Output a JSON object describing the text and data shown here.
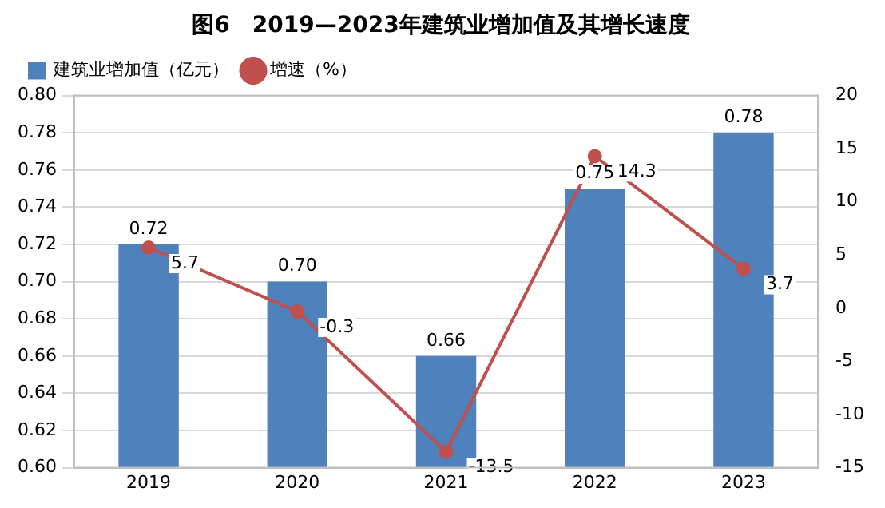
{
  "chart_data": {
    "type": "bar",
    "title": "图6　2019—2023年建筑业增加值及其增长速度",
    "categories": [
      "2019",
      "2020",
      "2021",
      "2022",
      "2023"
    ],
    "series": [
      {
        "name": "建筑业增加值（亿元）",
        "color": "#4f81bd",
        "values": [
          0.72,
          0.7,
          0.66,
          0.75,
          0.78
        ],
        "value_labels": [
          "0.72",
          "0.70",
          "0.66",
          "0.75",
          "0.78"
        ]
      },
      {
        "name": "增速（%）",
        "type": "line",
        "axis": "y2",
        "color": "#c0504d",
        "values": [
          5.7,
          -0.3,
          -13.5,
          14.3,
          3.7
        ]
      }
    ],
    "ylim": [
      0.6,
      0.8
    ],
    "yticks": [
      {
        "value": 0.6,
        "label": "0.60"
      },
      0.62,
      0.64,
      0.66,
      0.68,
      {
        "value": 0.7,
        "label": "0.70"
      },
      0.72,
      0.74,
      0.76,
      0.78,
      {
        "value": 0.8,
        "label": "0.80"
      }
    ],
    "y2lim": [
      -15,
      20
    ],
    "y2ticks": [
      -15,
      -10,
      -5,
      0,
      5,
      10,
      15,
      20
    ],
    "grid": "y",
    "legend": "top left",
    "marker": "circle",
    "line_style": "solid",
    "data_labels": true
  }
}
